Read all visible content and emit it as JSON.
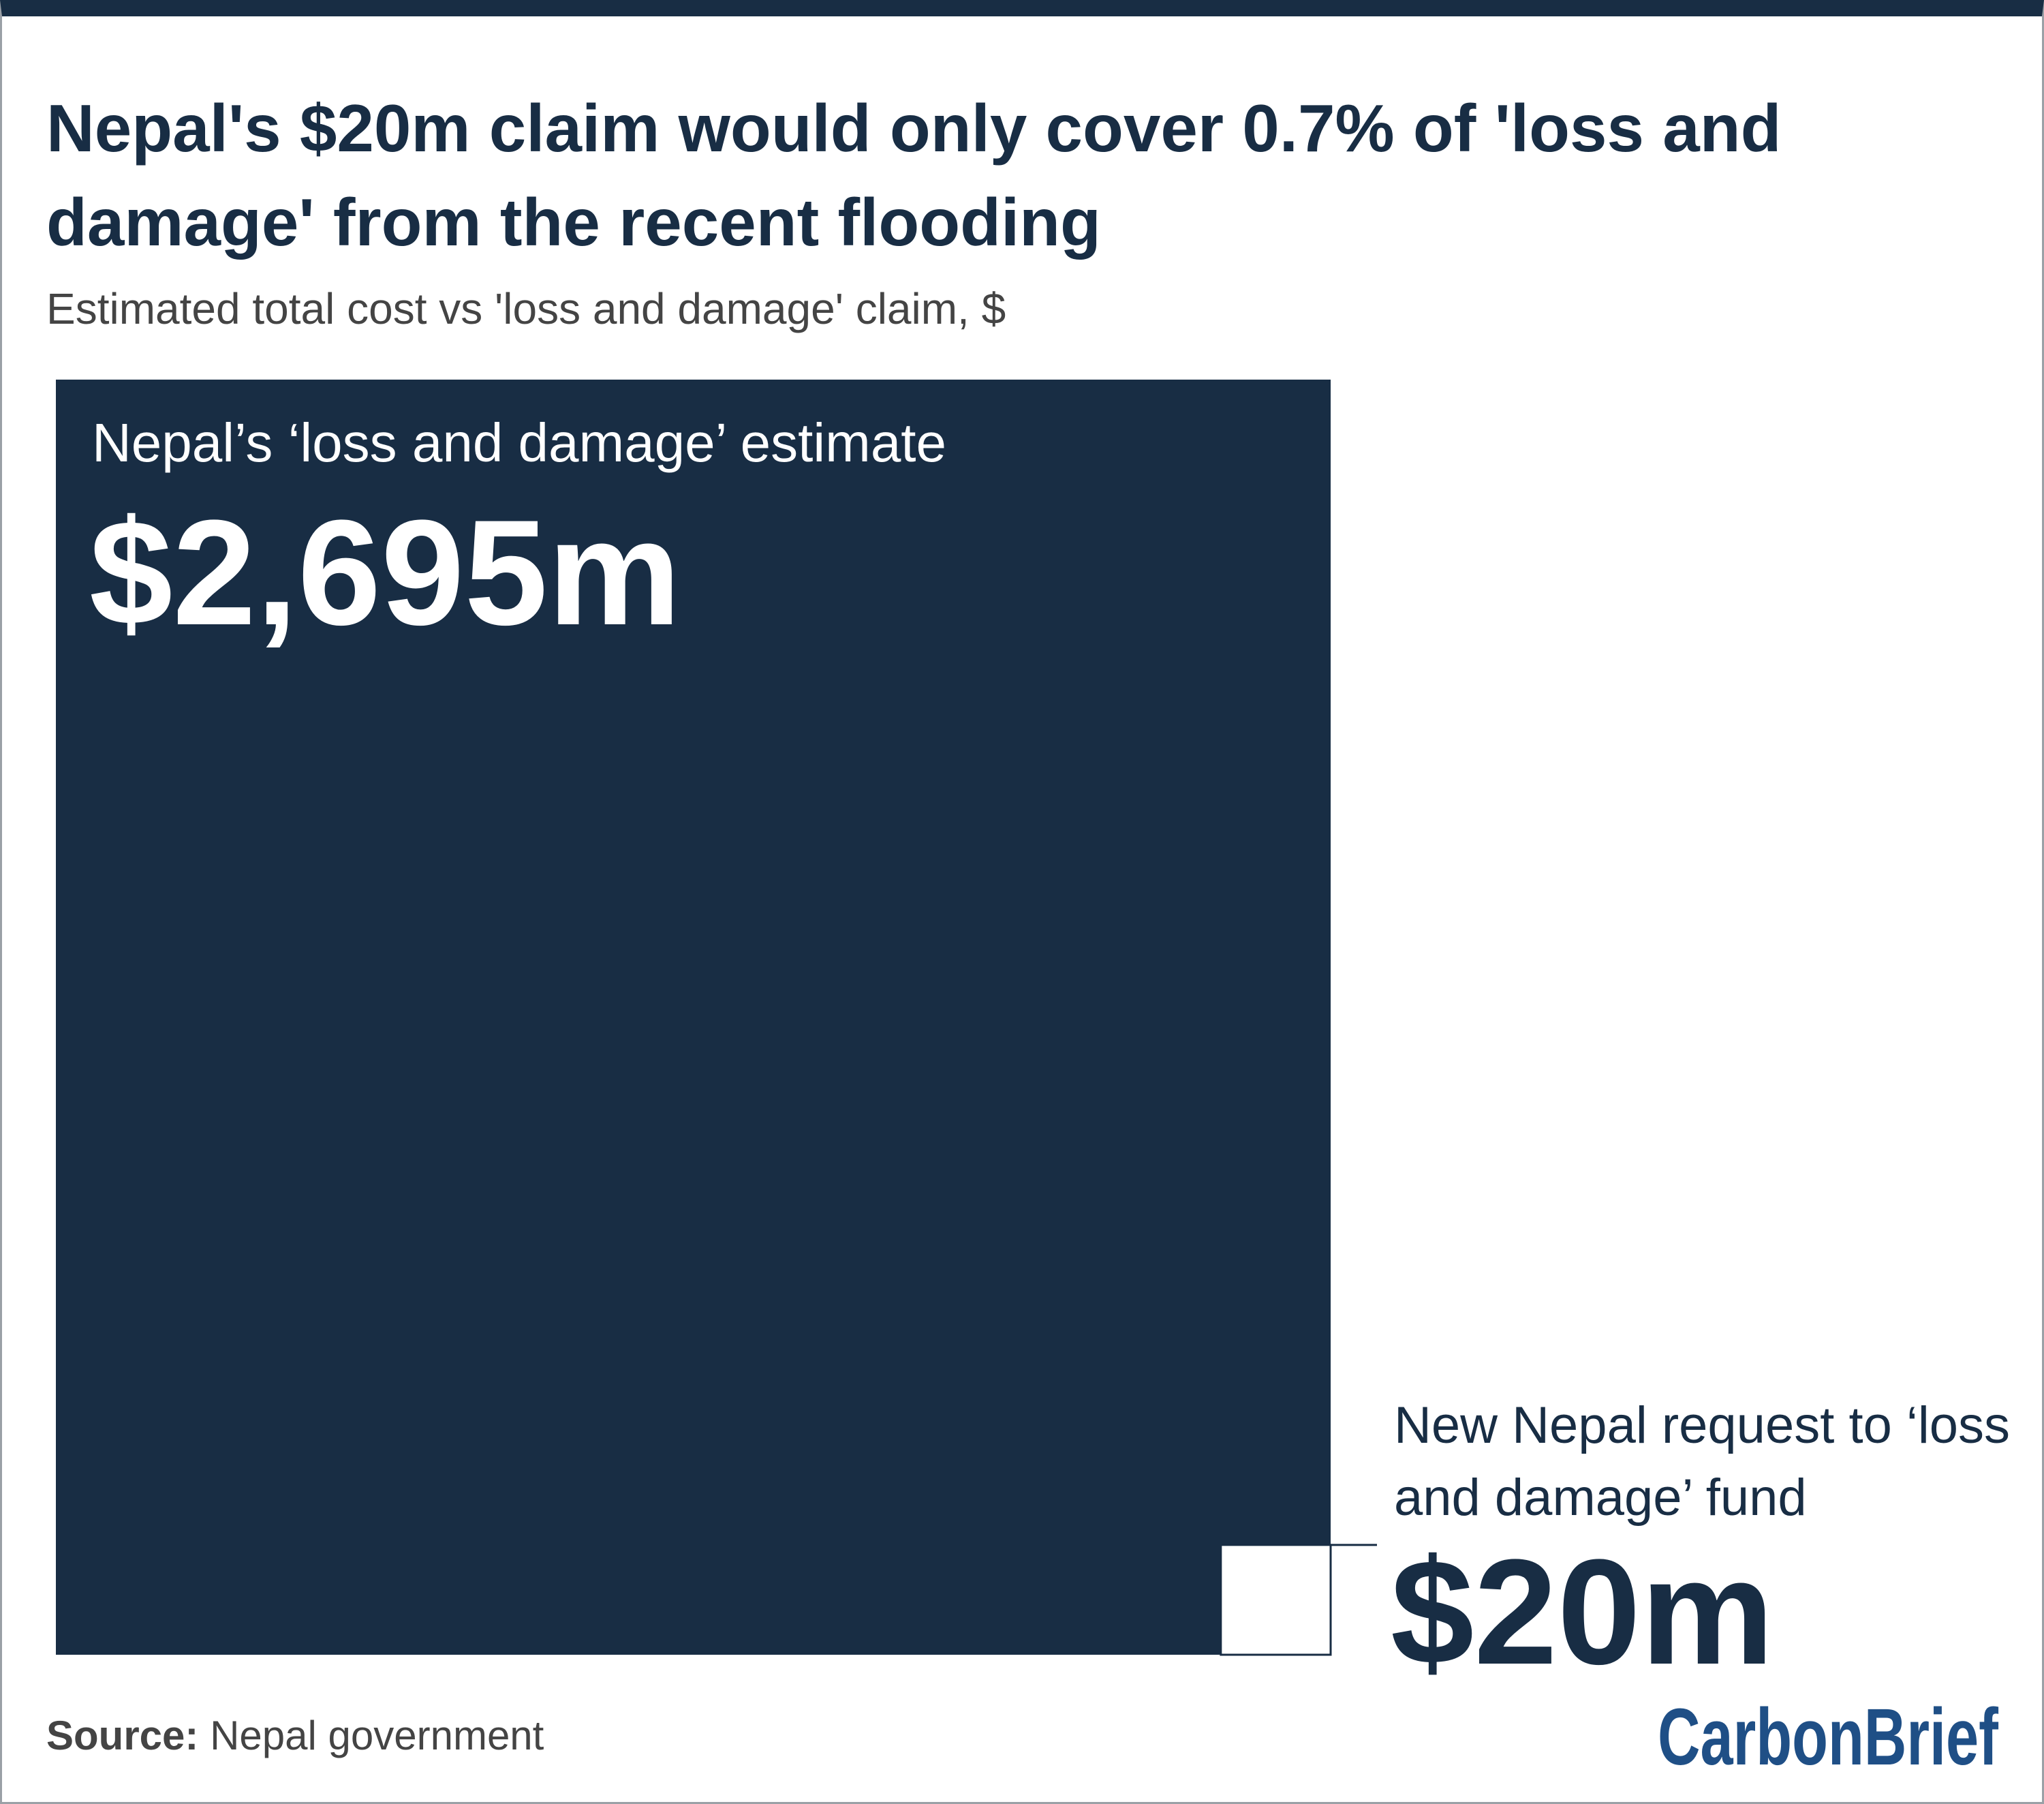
{
  "chart_data": {
    "type": "square-area",
    "title": "Nepal's $20m claim would only cover 0.7% of 'loss and damage' from the recent flooding",
    "subtitle": "Estimated total cost vs 'loss and damage' claim, $",
    "categories": [
      "Nepal’s ‘loss and damage’ estimate",
      "New Nepal request to ‘loss and damage’ fund"
    ],
    "values": [
      2695,
      20
    ],
    "value_labels": [
      "$2,695m",
      "$20m"
    ],
    "colors": [
      "#182d44",
      "#ffffff"
    ],
    "source_label": "Source:",
    "source": "Nepal government",
    "logo": "CarbonBrief"
  }
}
